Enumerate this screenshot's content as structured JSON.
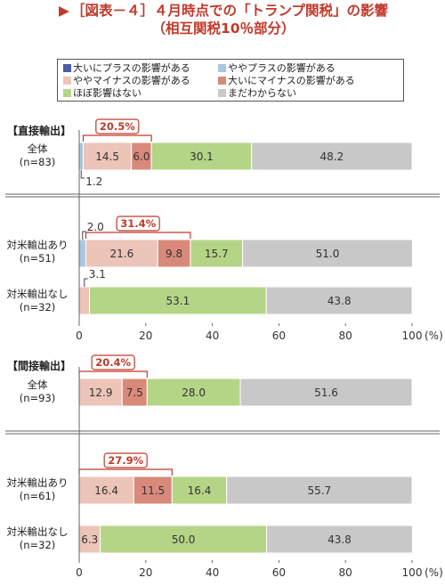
{
  "title": {
    "line1": "［図表－４］４月時点での「トランプ関税」の影響",
    "line2": "（相互関税10％部分）",
    "marker_icon": "triangle-right-icon"
  },
  "colors": {
    "title": "#c0392b",
    "large_plus": "#4a5ea8",
    "small_plus": "#a9c7e0",
    "small_minus": "#ecc4b8",
    "large_minus": "#d9897a",
    "none": "#b5d586",
    "unknown": "#c8c8c8",
    "bracket": "#c0392b"
  },
  "legend": [
    {
      "label": "大いにプラスの影響がある",
      "color": "#4a5ea8"
    },
    {
      "label": "ややプラスの影響がある",
      "color": "#a9c7e0"
    },
    {
      "label": "ややマイナスの影響がある",
      "color": "#ecc4b8"
    },
    {
      "label": "大いにマイナスの影響がある",
      "color": "#d9897a"
    },
    {
      "label": "ほぼ影響はない",
      "color": "#b5d586"
    },
    {
      "label": "まだわからない",
      "color": "#c8c8c8"
    }
  ],
  "chart_data": [
    {
      "type": "bar",
      "stacked": "horizontal-100",
      "section": "【直接輸出】",
      "categories": [
        {
          "label": "全体",
          "n": "(n=83)"
        },
        {
          "label": "対米輸出あり",
          "n": "(n=51)"
        },
        {
          "label": "対米輸出なし",
          "n": "(n=32)"
        }
      ],
      "series": [
        {
          "name": "大いにプラスの影響がある",
          "values": [
            0,
            0,
            0
          ]
        },
        {
          "name": "ややプラスの影響がある",
          "values": [
            1.2,
            2.0,
            0
          ]
        },
        {
          "name": "ややマイナスの影響がある",
          "values": [
            14.5,
            21.6,
            3.1
          ]
        },
        {
          "name": "大いにマイナスの影響がある",
          "values": [
            6.0,
            9.8,
            0
          ]
        },
        {
          "name": "ほぼ影響はない",
          "values": [
            30.1,
            15.7,
            53.1
          ]
        },
        {
          "name": "まだわからない",
          "values": [
            48.2,
            51.0,
            43.8
          ]
        }
      ],
      "value_labels": [
        [
          "",
          "1.2",
          "14.5",
          "6.0",
          "30.1",
          "48.2"
        ],
        [
          "",
          "2.0",
          "21.6",
          "9.8",
          "15.7",
          "51.0"
        ],
        [
          "",
          "",
          "3.1",
          "",
          "53.1",
          "43.8"
        ]
      ],
      "brackets": [
        "20.5%",
        "31.4%",
        ""
      ],
      "xlim": [
        0,
        100
      ],
      "xticks": [
        "0",
        "20",
        "40",
        "60",
        "80",
        "100"
      ],
      "xunit": "(%)"
    },
    {
      "type": "bar",
      "stacked": "horizontal-100",
      "section": "【間接輸出】",
      "categories": [
        {
          "label": "全体",
          "n": "(n=93)"
        },
        {
          "label": "対米輸出あり",
          "n": "(n=61)"
        },
        {
          "label": "対米輸出なし",
          "n": "(n=32)"
        }
      ],
      "series": [
        {
          "name": "大いにプラスの影響がある",
          "values": [
            0,
            0,
            0
          ]
        },
        {
          "name": "ややプラスの影響がある",
          "values": [
            0,
            0,
            0
          ]
        },
        {
          "name": "ややマイナスの影響がある",
          "values": [
            12.9,
            16.4,
            6.3
          ]
        },
        {
          "name": "大いにマイナスの影響がある",
          "values": [
            7.5,
            11.5,
            0
          ]
        },
        {
          "name": "ほぼ影響はない",
          "values": [
            28.0,
            16.4,
            50.0
          ]
        },
        {
          "name": "まだわからない",
          "values": [
            51.6,
            55.7,
            43.8
          ]
        }
      ],
      "value_labels": [
        [
          "",
          "",
          "12.9",
          "7.5",
          "28.0",
          "51.6"
        ],
        [
          "",
          "",
          "16.4",
          "11.5",
          "16.4",
          "55.7"
        ],
        [
          "",
          "",
          "6.3",
          "",
          "50.0",
          "43.8"
        ]
      ],
      "brackets": [
        "20.4%",
        "27.9%",
        ""
      ],
      "xlim": [
        0,
        100
      ],
      "xticks": [
        "0",
        "20",
        "40",
        "60",
        "80",
        "100"
      ],
      "xunit": "(%)"
    }
  ]
}
